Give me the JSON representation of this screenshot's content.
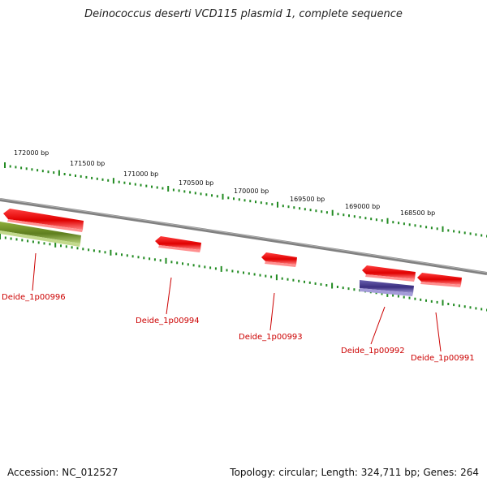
{
  "title": "Deinococcus deserti VCD115 plasmid 1, complete sequence",
  "accession_text": "Accession: NC_012527",
  "summary_text": "Topology: circular; Length: 324,711 bp; Genes: 264",
  "colors": {
    "backbone": "#808080",
    "ticks": "#228b22",
    "forward_gene": "#ff0000",
    "reverse_gene_green": "#6b8e23",
    "reverse_gene_blue": "#483d8b",
    "gene_label": "#cc0000",
    "tick_label": "#111111"
  },
  "ruler": {
    "unit": "bp",
    "labels": [
      {
        "pos": 172000,
        "text": "172000 bp"
      },
      {
        "pos": 171500,
        "text": "171500 bp"
      },
      {
        "pos": 171000,
        "text": "171000 bp"
      },
      {
        "pos": 170500,
        "text": "170500 bp"
      },
      {
        "pos": 170000,
        "text": "170000 bp"
      },
      {
        "pos": 169500,
        "text": "169500 bp"
      },
      {
        "pos": 169000,
        "text": "169000 bp"
      },
      {
        "pos": 168500,
        "text": "168500 bp"
      }
    ]
  },
  "genes": [
    {
      "name": "Deide_1p00996",
      "strand": "forward",
      "color": "#ff0000"
    },
    {
      "name": "",
      "strand": "reverse",
      "color": "#6b8e23"
    },
    {
      "name": "Deide_1p00994",
      "strand": "forward",
      "color": "#ff0000"
    },
    {
      "name": "Deide_1p00993",
      "strand": "forward",
      "color": "#ff0000"
    },
    {
      "name": "Deide_1p00992",
      "strand": "reverse",
      "color": "#483d8b"
    },
    {
      "name": "",
      "strand": "forward",
      "color": "#ff0000"
    },
    {
      "name": "Deide_1p00991",
      "strand": "forward",
      "color": "#ff0000"
    }
  ]
}
